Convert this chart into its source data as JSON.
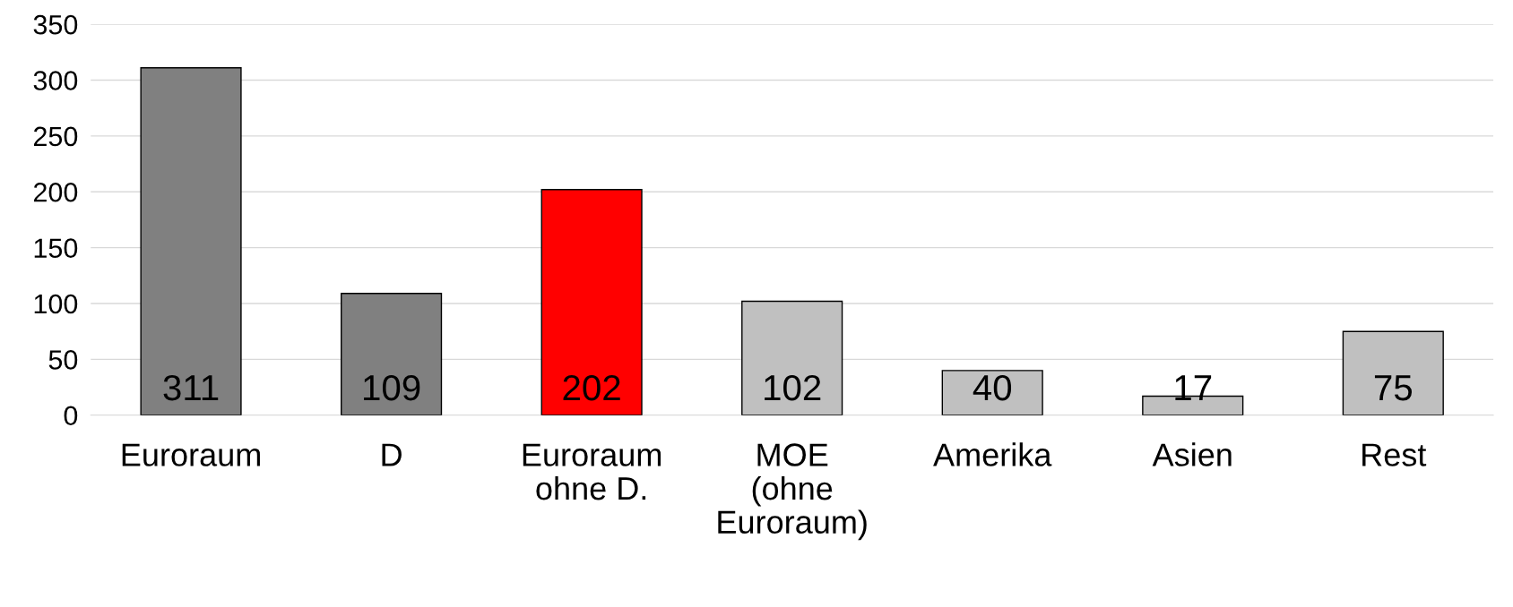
{
  "chart_data": {
    "type": "bar",
    "categories": [
      "Euroraum",
      "D",
      "Euroraum\nohne D.",
      "MOE\n(ohne\nEuroraum)",
      "Amerika",
      "Asien",
      "Rest"
    ],
    "values": [
      311,
      109,
      202,
      102,
      40,
      17,
      75
    ],
    "colors": [
      "#808080",
      "#808080",
      "#ff0000",
      "#c0c0c0",
      "#c0c0c0",
      "#c0c0c0",
      "#c0c0c0"
    ],
    "ylim": [
      0,
      350
    ],
    "yticks": [
      0,
      50,
      100,
      150,
      200,
      250,
      300,
      350
    ],
    "grid": "y",
    "data_labels": true
  }
}
